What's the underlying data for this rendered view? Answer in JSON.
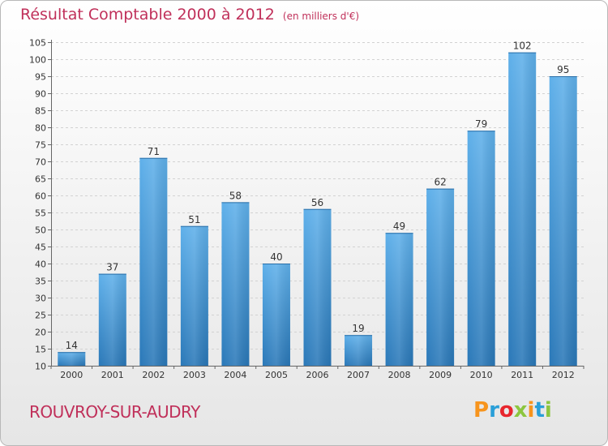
{
  "header": {
    "title": "Résultat Comptable 2000 à 2012",
    "subtitle": "(en milliers d'€)"
  },
  "footer": {
    "commune": "ROUVROY-SUR-AUDRY",
    "brand": "Proxiti",
    "brand_colors": [
      "#f7941d",
      "#2a9fd8",
      "#e8262d",
      "#8cc63f",
      "#f7941d",
      "#2a9fd8",
      "#8cc63f"
    ]
  },
  "chart_data": {
    "type": "bar",
    "title": "Résultat Comptable 2000 à 2012",
    "subtitle": "(en milliers d'€)",
    "categories": [
      "2000",
      "2001",
      "2002",
      "2003",
      "2004",
      "2005",
      "2006",
      "2007",
      "2008",
      "2009",
      "2010",
      "2011",
      "2012"
    ],
    "values": [
      14,
      37,
      71,
      51,
      58,
      40,
      56,
      19,
      49,
      62,
      79,
      102,
      95
    ],
    "ylim": [
      10,
      105
    ],
    "yticks": [
      10,
      15,
      20,
      25,
      30,
      35,
      40,
      45,
      50,
      55,
      60,
      65,
      70,
      75,
      80,
      85,
      90,
      95,
      100,
      105
    ],
    "xlabel": "",
    "ylabel": "",
    "grid": true,
    "bar_color": "#3d97d6"
  }
}
